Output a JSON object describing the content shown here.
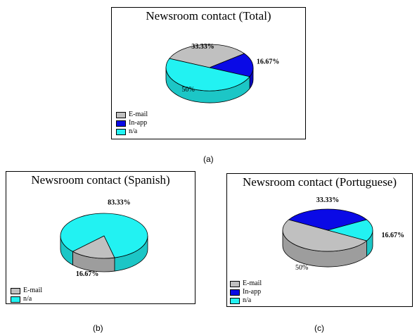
{
  "colors": {
    "E-mail": "#c0c0c0",
    "In-app": "#0a0ae6",
    "n/a": "#22f2f2"
  },
  "chart_data": [
    {
      "type": "pie",
      "title": "Newsroom contact (Total)",
      "caption": "(a)",
      "categories": [
        "E-mail",
        "In-app",
        "n/a"
      ],
      "values": [
        33.33,
        16.67,
        50
      ],
      "data_labels": [
        "33.33%",
        "16.67%",
        "50%"
      ],
      "legend": [
        "E-mail",
        "In-app",
        "n/a"
      ]
    },
    {
      "type": "pie",
      "title": "Newsroom contact (Spanish)",
      "caption": "(b)",
      "categories": [
        "E-mail",
        "n/a"
      ],
      "values": [
        16.67,
        83.33
      ],
      "data_labels": [
        "16.67%",
        "83.33%"
      ],
      "legend": [
        "E-mail",
        "n/a"
      ]
    },
    {
      "type": "pie",
      "title": "Newsroom contact (Portuguese)",
      "caption": "(c)",
      "categories": [
        "E-mail",
        "In-app",
        "n/a"
      ],
      "values": [
        50,
        33.33,
        16.67
      ],
      "data_labels": [
        "50%",
        "33.33%",
        "16.67%"
      ],
      "legend": [
        "E-mail",
        "In-app",
        "n/a"
      ]
    }
  ]
}
